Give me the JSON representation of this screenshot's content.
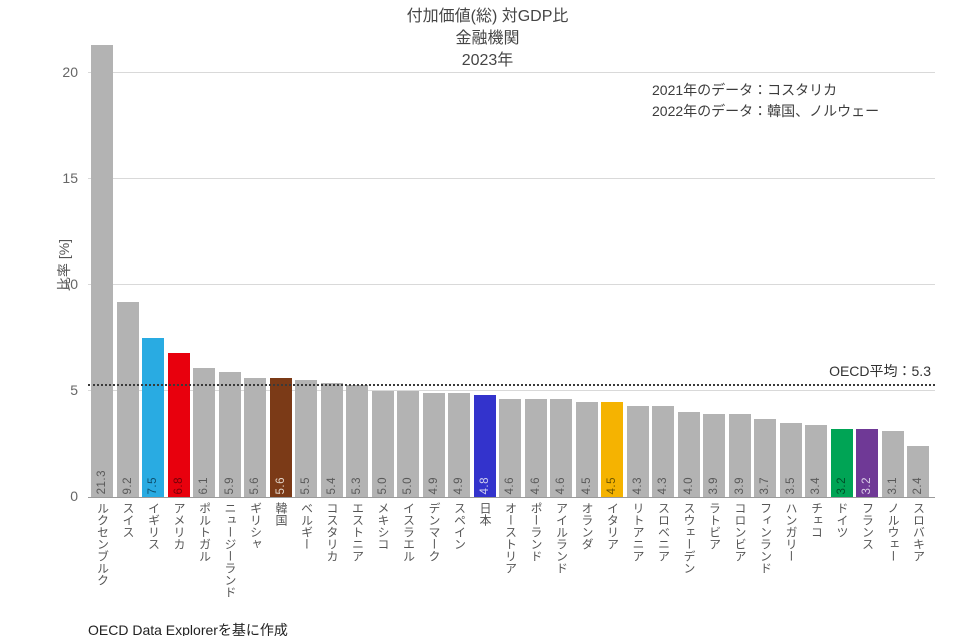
{
  "title": {
    "line1": "付加価値(総) 対GDP比",
    "line2": "金融機関",
    "line3": "2023年"
  },
  "annotation": {
    "line1": "2021年のデータ：コスタリカ",
    "line2": "2022年のデータ：韓国、ノルウェー"
  },
  "source": "OECD Data Explorerを基に作成",
  "chart_data": {
    "type": "bar",
    "title": "付加価値(総) 対GDP比",
    "subtitle": "金融機関",
    "year": "2023年",
    "ylabel": "比率 [%]",
    "ylim": [
      0,
      21.5
    ],
    "yticks": [
      0,
      5,
      10,
      15,
      20
    ],
    "grid": "horizontal",
    "legend": "none",
    "reference_line": {
      "value": 5.3,
      "label": "OECD平均：5.3",
      "style": "dotted"
    },
    "default_bar_color": "#b3b3b3",
    "categories": [
      "ルクセンブルク",
      "スイス",
      "イギリス",
      "アメリカ",
      "ポルトガル",
      "ニュージーランド",
      "ギリシャ",
      "韓国",
      "ベルギー",
      "コスタリカ",
      "エストニア",
      "メキシコ",
      "イスラエル",
      "デンマーク",
      "スペイン",
      "日本",
      "オーストリア",
      "ポーランド",
      "アイルランド",
      "オランダ",
      "イタリア",
      "リトアニア",
      "スロベニア",
      "スウェーデン",
      "ラトビア",
      "コロンビア",
      "フィンランド",
      "ハンガリー",
      "チェコ",
      "ドイツ",
      "フランス",
      "ノルウェー",
      "スロバキア"
    ],
    "values": [
      21.3,
      9.2,
      7.5,
      6.8,
      6.1,
      5.9,
      5.6,
      5.6,
      5.5,
      5.4,
      5.3,
      5.0,
      5.0,
      4.9,
      4.9,
      4.8,
      4.6,
      4.6,
      4.6,
      4.5,
      4.5,
      4.3,
      4.3,
      4.0,
      3.9,
      3.9,
      3.7,
      3.5,
      3.4,
      3.2,
      3.2,
      3.1,
      2.4
    ],
    "bar_colors": [
      "#b3b3b3",
      "#b3b3b3",
      "#29abe2",
      "#e8000d",
      "#b3b3b3",
      "#b3b3b3",
      "#b3b3b3",
      "#7b3a17",
      "#b3b3b3",
      "#b3b3b3",
      "#b3b3b3",
      "#b3b3b3",
      "#b3b3b3",
      "#b3b3b3",
      "#b3b3b3",
      "#3333cc",
      "#b3b3b3",
      "#b3b3b3",
      "#b3b3b3",
      "#b3b3b3",
      "#f5b301",
      "#b3b3b3",
      "#b3b3b3",
      "#b3b3b3",
      "#b3b3b3",
      "#b3b3b3",
      "#b3b3b3",
      "#b3b3b3",
      "#b3b3b3",
      "#00a455",
      "#6f3996",
      "#b3b3b3",
      "#b3b3b3"
    ],
    "value_label_colors": [
      "#595959",
      "#595959",
      "#0d4f6e",
      "#750008",
      "#595959",
      "#595959",
      "#595959",
      "#e3d5c9",
      "#595959",
      "#595959",
      "#595959",
      "#595959",
      "#595959",
      "#595959",
      "#595959",
      "#cfcfef",
      "#595959",
      "#595959",
      "#595959",
      "#595959",
      "#6e5600",
      "#595959",
      "#595959",
      "#595959",
      "#595959",
      "#595959",
      "#595959",
      "#595959",
      "#595959",
      "#004f29",
      "#d9cce6",
      "#595959",
      "#595959"
    ]
  }
}
